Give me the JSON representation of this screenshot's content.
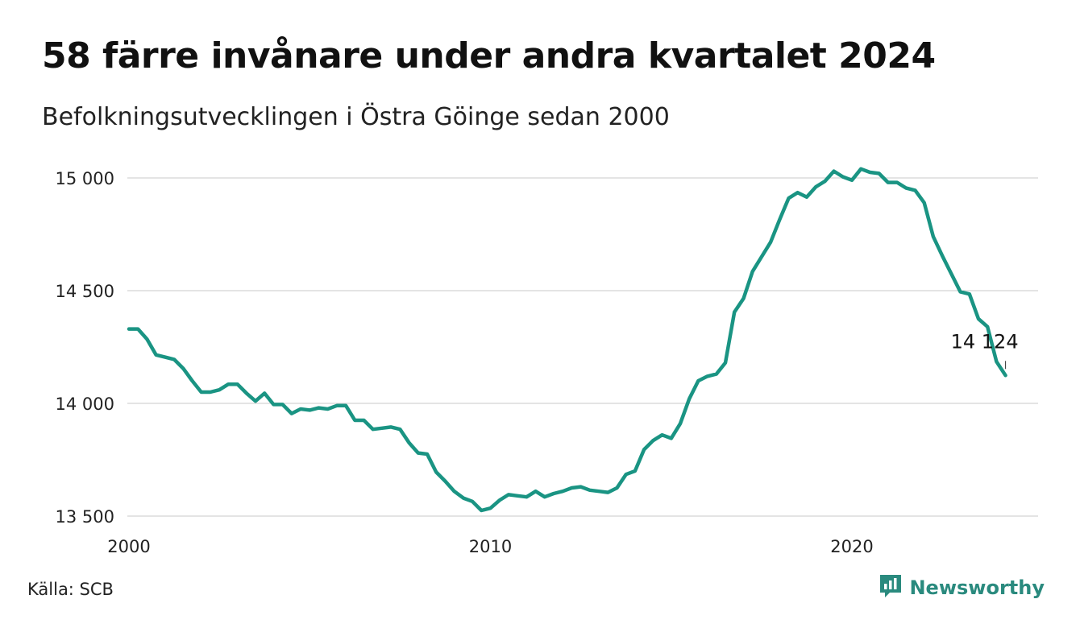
{
  "title": "58 färre invånare under andra kvartalet 2024",
  "subtitle": "Befolkningsutvecklingen i Östra Göinge sedan 2000",
  "source": "Källa: SCB",
  "brand": {
    "name": "Newsworthy",
    "icon": "newsworthy-logo-icon",
    "color": "#2a8a7e"
  },
  "chart_data": {
    "type": "line",
    "title": "58 färre invånare under andra kvartalet 2024",
    "subtitle": "Befolkningsutvecklingen i Östra Göinge sedan 2000",
    "x_ticks": [
      2000,
      2010,
      2020
    ],
    "y_ticks": [
      13500,
      14000,
      14500,
      15000
    ],
    "y_tick_labels": [
      "13 500",
      "14 000",
      "14 500",
      "15 000"
    ],
    "x_tick_labels": [
      "2000",
      "2010",
      "2020"
    ],
    "xlim": [
      2000,
      2025
    ],
    "ylim": [
      13480,
      15060
    ],
    "grid": true,
    "line_color": "#1a9483",
    "end_label": "14 124",
    "series": [
      {
        "frequency": "quarterly",
        "start": "2000 Q1",
        "values": [
          14330,
          14330,
          14285,
          14215,
          14205,
          14195,
          14155,
          14100,
          14050,
          14050,
          14060,
          14085,
          14085,
          14045,
          14010,
          14045,
          13995,
          13995,
          13955,
          13975,
          13970,
          13980,
          13975,
          13990,
          13990,
          13925,
          13925,
          13885,
          13890,
          13895,
          13885,
          13825,
          13780,
          13775,
          13695,
          13655,
          13610,
          13580,
          13565,
          13525,
          13535,
          13570,
          13595,
          13590,
          13585,
          13610,
          13585,
          13600,
          13610,
          13625,
          13630,
          13615,
          13610,
          13605,
          13625,
          13685,
          13700,
          13795,
          13835,
          13860,
          13845,
          13910,
          14020,
          14100,
          14120,
          14130,
          14180,
          14405,
          14465,
          14585,
          14650,
          14715,
          14815,
          14910,
          14935,
          14915,
          14960,
          14985,
          15030,
          15005,
          14990,
          15040,
          15025,
          15020,
          14980,
          14980,
          14955,
          14945,
          14890,
          14740,
          14655,
          14575,
          14495,
          14485,
          14375,
          14340,
          14185,
          14124
        ]
      }
    ]
  }
}
